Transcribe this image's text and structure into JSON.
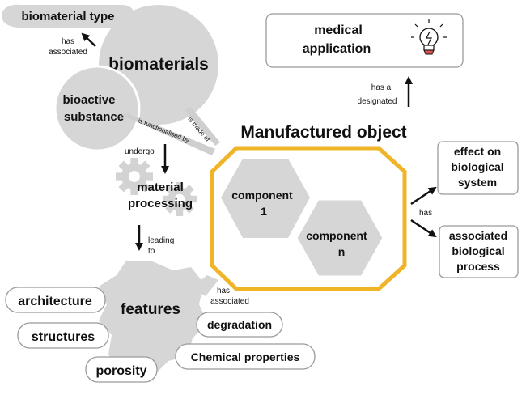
{
  "nodes": {
    "biomaterial_type": "biomaterial  type",
    "biomaterials": "biomaterials",
    "bioactive_substance": [
      "bioactive",
      "substance"
    ],
    "material_processing": [
      "material",
      "processing"
    ],
    "manufactured_object": "Manufactured object",
    "component_1": [
      "component",
      "1"
    ],
    "component_n": [
      "component",
      "n"
    ],
    "medical_application": [
      "medical",
      "application"
    ],
    "effect_on_biological_system": [
      "effect on",
      "biological",
      "system"
    ],
    "associated_biological_process": [
      "associated",
      "biological",
      "process"
    ],
    "features": "features",
    "architecture": "architecture",
    "structures": "structures",
    "porosity": "porosity",
    "degradation": "degradation",
    "chemical_properties": "Chemical properties"
  },
  "relations": {
    "has_associated_top": [
      "has",
      "associated"
    ],
    "is_functionalised_by": "is functionalised by",
    "is_made_of": "is made of",
    "undergo": "undergo",
    "leading_to": [
      "leading",
      "to"
    ],
    "has_a_designated": [
      "has a",
      "designated"
    ],
    "has_effect": "has",
    "has_associated_bottom": [
      "has",
      "associated"
    ]
  },
  "colors": {
    "bubble_gray": "#d6d6d6",
    "gear_gray": "#d3d3d3",
    "octagon_border": "#f0b429",
    "box_border": "#9a9a9a",
    "arrow": "#111111"
  },
  "icons": {
    "lightbulb": "lightbulb-icon",
    "gears": "gears-icon"
  }
}
